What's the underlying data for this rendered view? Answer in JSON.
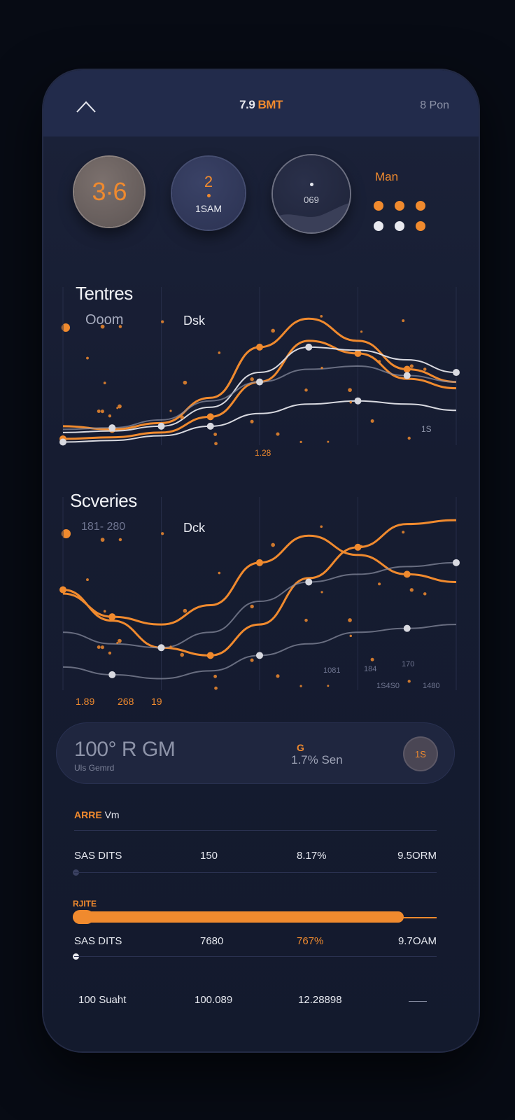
{
  "header": {
    "title_number": "7.9",
    "title_unit": "BMT",
    "right_text": "8 Pon"
  },
  "stats": {
    "circle1": {
      "value": "3·6"
    },
    "circle2": {
      "value": "2",
      "sub": "1SAM"
    },
    "circle3": {
      "sub": "069"
    },
    "side_label": "Man",
    "dots": [
      "#f08a2e",
      "#f08a2e",
      "#f08a2e",
      "#e8e9ef",
      "#e8e9ef",
      "#f08a2e"
    ]
  },
  "chart1": {
    "title": "Tentres",
    "left_label": "Ooom",
    "right_label": "Dsk",
    "value_labels": [
      "1.28",
      "1S"
    ]
  },
  "chart2": {
    "title": "Scveries",
    "left_label": "181- 280",
    "right_label": "Dck",
    "value_labels": [
      "1.89",
      "268",
      "19"
    ],
    "right_values": [
      "1081",
      "184",
      "170",
      "1S4S0",
      "1480"
    ]
  },
  "chart_data": [
    {
      "type": "line",
      "title": "Tentres",
      "series": [
        {
          "name": "",
          "color": "#f08a2e",
          "values": [
            12,
            10,
            14,
            30,
            62,
            80,
            66,
            48,
            40
          ]
        },
        {
          "name": "",
          "color": "#f08a2e",
          "values": [
            4,
            5,
            8,
            18,
            40,
            66,
            58,
            42,
            36
          ]
        },
        {
          "name": "",
          "color": "#d8d9e0",
          "values": [
            8,
            9,
            12,
            24,
            46,
            62,
            60,
            54,
            46
          ]
        },
        {
          "name": "",
          "color": "#8c90a3",
          "values": [
            10,
            11,
            16,
            28,
            40,
            48,
            50,
            44,
            40
          ]
        },
        {
          "name": "",
          "color": "#d8d9e0",
          "values": [
            2,
            3,
            6,
            12,
            20,
            26,
            28,
            26,
            22
          ]
        }
      ],
      "xlim": [
        0,
        8
      ],
      "ylim": [
        0,
        100
      ]
    },
    {
      "type": "line",
      "title": "Scveries",
      "series": [
        {
          "name": "",
          "color": "#f08a2e",
          "values": [
            50,
            38,
            34,
            44,
            66,
            80,
            70,
            60,
            56
          ]
        },
        {
          "name": "",
          "color": "#f08a2e",
          "values": [
            52,
            36,
            22,
            18,
            34,
            58,
            74,
            86,
            88
          ]
        },
        {
          "name": "",
          "color": "#8c90a3",
          "values": [
            30,
            24,
            22,
            30,
            46,
            56,
            60,
            64,
            66
          ]
        },
        {
          "name": "",
          "color": "#8c90a3",
          "values": [
            12,
            8,
            6,
            10,
            18,
            24,
            30,
            32,
            34
          ]
        }
      ],
      "xlim": [
        0,
        8
      ],
      "ylim": [
        0,
        100
      ]
    }
  ],
  "summary": {
    "big": "100° R GM",
    "small": "Uls Gemrd",
    "mid_icon": "G",
    "mid": "1.7% Sen",
    "badge": "1S"
  },
  "list": {
    "head_orange": "ARRE",
    "head_white": "Vm",
    "row1": [
      "SAS DITS",
      "150",
      "8.17%",
      "9.5ORM"
    ],
    "bar_label": "RJITE",
    "bar_progress": 0.91,
    "row2": [
      "SAS DITS",
      "7680",
      "767%",
      "9.7OAM"
    ],
    "footer": [
      "100 Suaht",
      "100.089",
      "12.28898"
    ]
  }
}
